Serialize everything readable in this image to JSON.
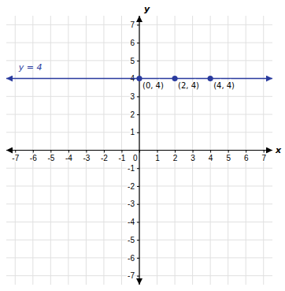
{
  "chart_data": {
    "type": "line",
    "x_label": "x",
    "y_label": "y",
    "xlim": [
      -7.5,
      7.5
    ],
    "ylim": [
      -7.5,
      7.5
    ],
    "xticks": [
      -7,
      -6,
      -5,
      -4,
      -3,
      -2,
      -1,
      0,
      1,
      2,
      3,
      4,
      5,
      6,
      7
    ],
    "yticks": [
      -7,
      -6,
      -5,
      -4,
      -3,
      -2,
      -1,
      1,
      2,
      3,
      4,
      5,
      6,
      7
    ],
    "grid": true,
    "data_labels": true,
    "series": [
      {
        "type": "line",
        "color": "#2A3B9E",
        "x": [
          -7.5,
          7.5
        ],
        "values": [
          4,
          4
        ]
      },
      {
        "type": "scatter",
        "color": "#2A3B9E",
        "marker": "circle",
        "x": [
          0,
          2,
          4
        ],
        "values": [
          4,
          4,
          4
        ],
        "value_labels": [
          "(0, 4)",
          "(2, 4)",
          "(4, 4)"
        ]
      }
    ],
    "annotations": [
      {
        "text": "y = 4",
        "x": -6.8,
        "y": 4.45
      }
    ]
  }
}
